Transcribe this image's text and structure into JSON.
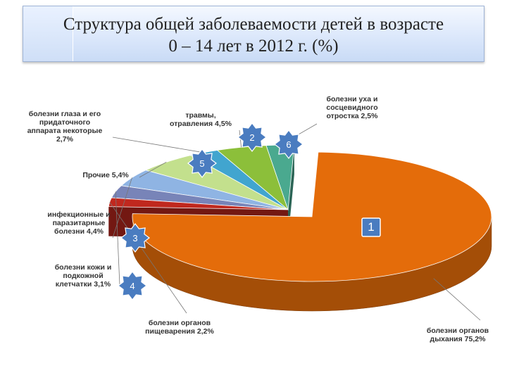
{
  "title": {
    "line1": "Структура общей заболеваемости детей в возрасте",
    "line2": "0 – 14 лет в 2012 г. (%)"
  },
  "chart_data": {
    "type": "pie",
    "title": "Структура общей заболеваемости детей в возрасте 0 – 14 лет в 2012 г. (%)",
    "slices": [
      {
        "name": "болезни органов дыхания",
        "value": 75.2,
        "color": "#e46c0a",
        "label_lines": [
          "болезни органов",
          "дыхания 75,2%"
        ]
      },
      {
        "name": "болезни органов пищеварения",
        "value": 2.2,
        "color": "#c0281e",
        "label_lines": [
          "болезни органов",
          "пищеварения 2,2%"
        ]
      },
      {
        "name": "болезни кожи и подкожной клетчатки",
        "value": 3.1,
        "color": "#7884b8",
        "label_lines": [
          "болезни кожи и",
          "подкожной",
          "клетчатки 3,1%"
        ]
      },
      {
        "name": "инфекционные и паразитарные болезни",
        "value": 4.4,
        "color": "#8fb4e3",
        "label_lines": [
          "инфекционные и",
          "паразитарные",
          "болезни 4,4%"
        ]
      },
      {
        "name": "Прочие",
        "value": 5.4,
        "color": "#c3e08d",
        "label_lines": [
          "Прочие 5,4%"
        ]
      },
      {
        "name": "болезни глаза и его придаточного аппарата некоторые",
        "value": 2.7,
        "color": "#41a5cf",
        "label_lines": [
          "болезни глаза и его",
          "придаточного",
          "аппарата некоторые",
          "2,7%"
        ]
      },
      {
        "name": "травмы, отравления",
        "value": 4.5,
        "color": "#8cbf3a",
        "label_lines": [
          "травмы,",
          "отравления 4,5%"
        ]
      },
      {
        "name": "болезни уха и сосцевидного отростка",
        "value": 2.5,
        "color": "#4aa98f",
        "label_lines": [
          "болезни уха и",
          "сосцевидного",
          "отростка 2,5%"
        ]
      }
    ],
    "exploded_slice": "болезни органов дыхания",
    "markers": [
      {
        "text": "1",
        "shape": "square",
        "slice": "болезни органов дыхания"
      },
      {
        "text": "2",
        "shape": "star",
        "slice": "травмы, отравления"
      },
      {
        "text": "3",
        "shape": "star",
        "slice": "инфекционные и паразитарные болезни"
      },
      {
        "text": "4",
        "shape": "star",
        "slice": "болезни кожи и подкожной клетчатки"
      },
      {
        "text": "5",
        "shape": "star",
        "slice": "Прочие"
      },
      {
        "text": "6",
        "shape": "star",
        "slice": "болезни уха и сосцевидного отростка"
      }
    ],
    "marker_color": "#4a7cc0"
  }
}
